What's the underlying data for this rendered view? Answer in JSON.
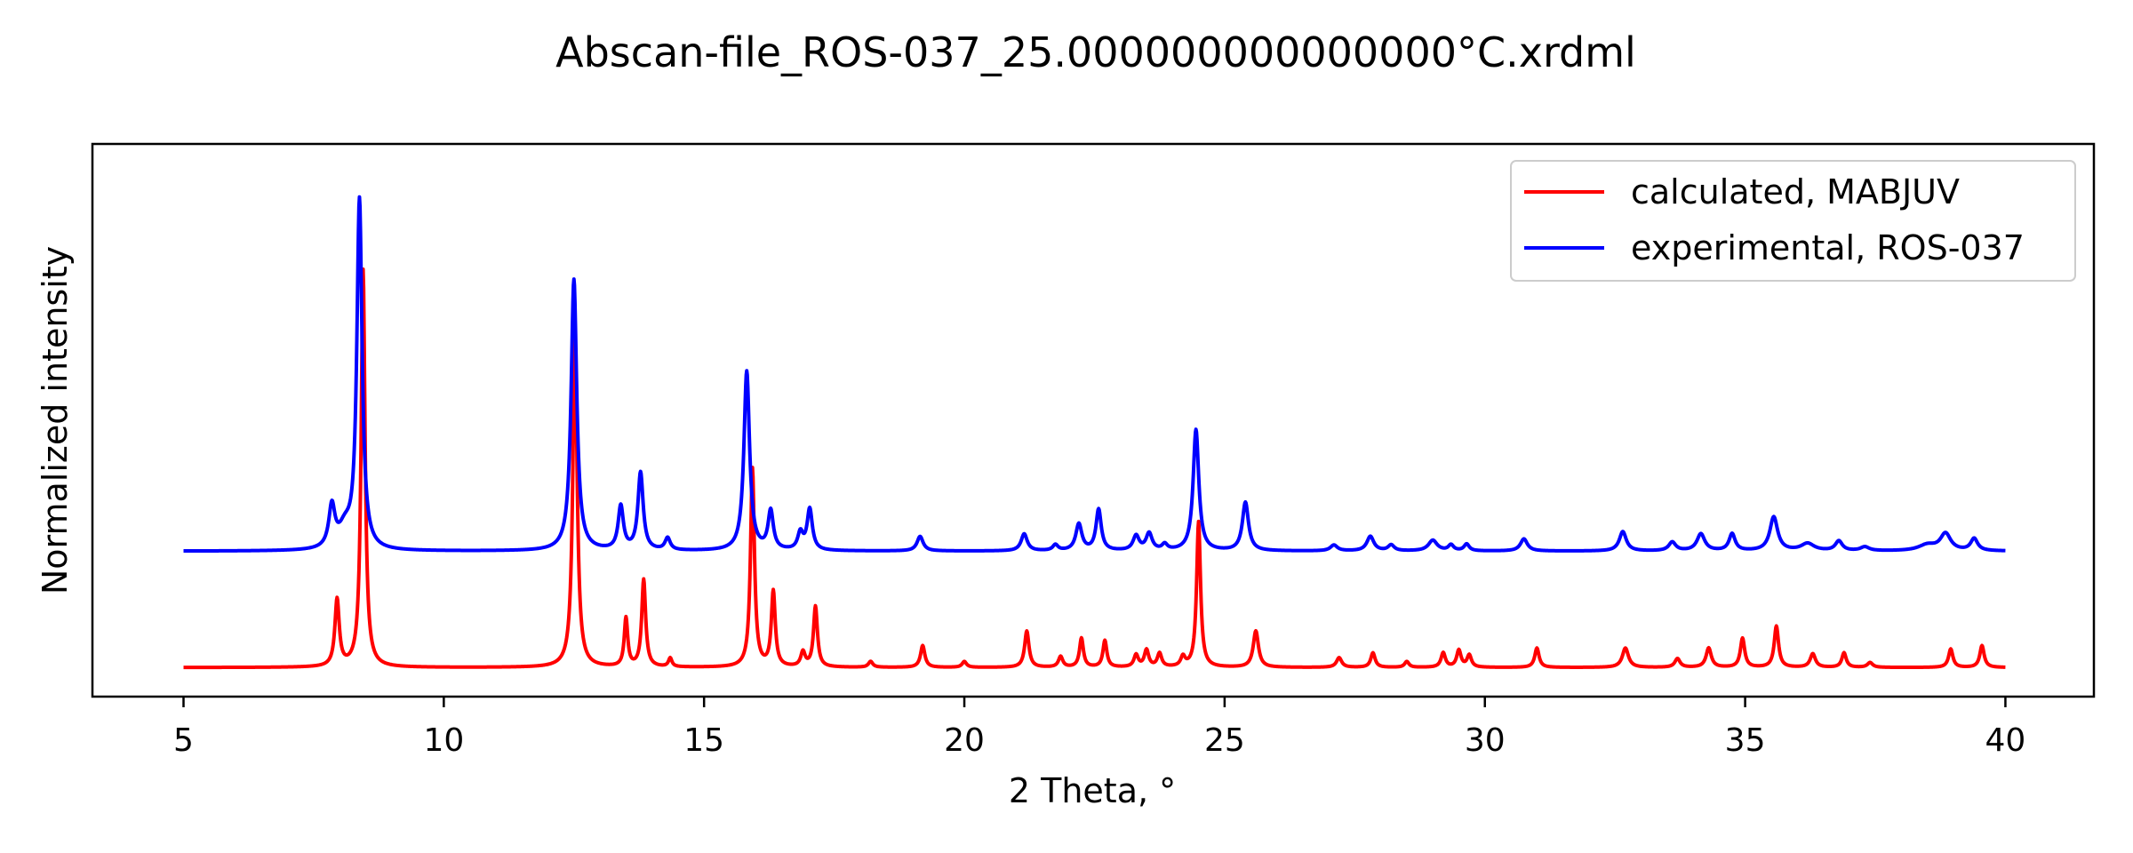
{
  "chart_data": {
    "type": "line",
    "title": "Abscan-file_ROS-037_25.000000000000000°C.xrdml",
    "xlabel": "2 Theta, °",
    "ylabel": "Normalized intensity",
    "xlim": [
      3.25,
      41.7
    ],
    "ylim": [
      -0.06,
      1.08
    ],
    "grid": false,
    "legend_position": "top-right",
    "x_ticks": [
      5,
      10,
      15,
      20,
      25,
      30,
      35,
      40
    ],
    "x_tick_labels": [
      "5",
      "10",
      "15",
      "20",
      "25",
      "30",
      "35",
      "40"
    ],
    "y_ticks_visible": false,
    "series": [
      {
        "name": "calculated, MABJUV",
        "color": "#ff0000",
        "x_range": [
          5,
          40
        ],
        "baseline": 0.0,
        "peaks": [
          {
            "x": 7.95,
            "y": 0.138,
            "w": 0.05
          },
          {
            "x": 8.45,
            "y": 0.82,
            "w": 0.045
          },
          {
            "x": 12.52,
            "y": 0.68,
            "w": 0.05
          },
          {
            "x": 13.5,
            "y": 0.1,
            "w": 0.04
          },
          {
            "x": 13.84,
            "y": 0.18,
            "w": 0.045
          },
          {
            "x": 14.35,
            "y": 0.018,
            "w": 0.04
          },
          {
            "x": 15.93,
            "y": 0.41,
            "w": 0.045
          },
          {
            "x": 16.33,
            "y": 0.155,
            "w": 0.045
          },
          {
            "x": 16.9,
            "y": 0.03,
            "w": 0.05
          },
          {
            "x": 17.14,
            "y": 0.125,
            "w": 0.045
          },
          {
            "x": 18.2,
            "y": 0.012,
            "w": 0.05
          },
          {
            "x": 19.2,
            "y": 0.045,
            "w": 0.05
          },
          {
            "x": 20.0,
            "y": 0.012,
            "w": 0.05
          },
          {
            "x": 21.2,
            "y": 0.075,
            "w": 0.05
          },
          {
            "x": 21.85,
            "y": 0.022,
            "w": 0.05
          },
          {
            "x": 22.25,
            "y": 0.06,
            "w": 0.045
          },
          {
            "x": 22.7,
            "y": 0.055,
            "w": 0.045
          },
          {
            "x": 23.3,
            "y": 0.025,
            "w": 0.05
          },
          {
            "x": 23.5,
            "y": 0.035,
            "w": 0.05
          },
          {
            "x": 23.75,
            "y": 0.028,
            "w": 0.05
          },
          {
            "x": 24.2,
            "y": 0.02,
            "w": 0.05
          },
          {
            "x": 24.5,
            "y": 0.3,
            "w": 0.045
          },
          {
            "x": 25.6,
            "y": 0.075,
            "w": 0.06
          },
          {
            "x": 27.2,
            "y": 0.02,
            "w": 0.06
          },
          {
            "x": 27.85,
            "y": 0.03,
            "w": 0.05
          },
          {
            "x": 28.5,
            "y": 0.012,
            "w": 0.05
          },
          {
            "x": 29.2,
            "y": 0.03,
            "w": 0.05
          },
          {
            "x": 29.5,
            "y": 0.035,
            "w": 0.05
          },
          {
            "x": 29.7,
            "y": 0.025,
            "w": 0.05
          },
          {
            "x": 31.0,
            "y": 0.04,
            "w": 0.05
          },
          {
            "x": 32.7,
            "y": 0.04,
            "w": 0.07
          },
          {
            "x": 33.7,
            "y": 0.018,
            "w": 0.06
          },
          {
            "x": 34.3,
            "y": 0.04,
            "w": 0.06
          },
          {
            "x": 34.95,
            "y": 0.06,
            "w": 0.05
          },
          {
            "x": 35.6,
            "y": 0.085,
            "w": 0.05
          },
          {
            "x": 36.3,
            "y": 0.028,
            "w": 0.06
          },
          {
            "x": 36.9,
            "y": 0.03,
            "w": 0.05
          },
          {
            "x": 37.4,
            "y": 0.01,
            "w": 0.06
          },
          {
            "x": 38.95,
            "y": 0.038,
            "w": 0.05
          },
          {
            "x": 39.55,
            "y": 0.045,
            "w": 0.05
          }
        ]
      },
      {
        "name": "experimental, ROS-037",
        "color": "#0000ff",
        "x_range": [
          5,
          40
        ],
        "baseline": 0.24,
        "peaks": [
          {
            "x": 7.85,
            "y": 0.085,
            "w": 0.07
          },
          {
            "x": 8.1,
            "y": 0.04,
            "w": 0.15
          },
          {
            "x": 8.38,
            "y": 0.72,
            "w": 0.06
          },
          {
            "x": 12.5,
            "y": 0.56,
            "w": 0.065
          },
          {
            "x": 13.4,
            "y": 0.09,
            "w": 0.06
          },
          {
            "x": 13.78,
            "y": 0.16,
            "w": 0.06
          },
          {
            "x": 14.3,
            "y": 0.025,
            "w": 0.06
          },
          {
            "x": 15.82,
            "y": 0.37,
            "w": 0.065
          },
          {
            "x": 16.28,
            "y": 0.08,
            "w": 0.06
          },
          {
            "x": 16.85,
            "y": 0.035,
            "w": 0.06
          },
          {
            "x": 17.03,
            "y": 0.085,
            "w": 0.06
          },
          {
            "x": 19.15,
            "y": 0.03,
            "w": 0.07
          },
          {
            "x": 21.15,
            "y": 0.035,
            "w": 0.07
          },
          {
            "x": 21.75,
            "y": 0.012,
            "w": 0.06
          },
          {
            "x": 22.2,
            "y": 0.055,
            "w": 0.07
          },
          {
            "x": 22.58,
            "y": 0.085,
            "w": 0.06
          },
          {
            "x": 23.3,
            "y": 0.03,
            "w": 0.07
          },
          {
            "x": 23.55,
            "y": 0.035,
            "w": 0.07
          },
          {
            "x": 23.85,
            "y": 0.012,
            "w": 0.06
          },
          {
            "x": 24.45,
            "y": 0.25,
            "w": 0.065
          },
          {
            "x": 25.4,
            "y": 0.1,
            "w": 0.07
          },
          {
            "x": 27.1,
            "y": 0.012,
            "w": 0.08
          },
          {
            "x": 27.8,
            "y": 0.03,
            "w": 0.08
          },
          {
            "x": 28.2,
            "y": 0.012,
            "w": 0.07
          },
          {
            "x": 29.0,
            "y": 0.022,
            "w": 0.1
          },
          {
            "x": 29.35,
            "y": 0.012,
            "w": 0.06
          },
          {
            "x": 29.65,
            "y": 0.014,
            "w": 0.06
          },
          {
            "x": 30.75,
            "y": 0.025,
            "w": 0.08
          },
          {
            "x": 32.65,
            "y": 0.04,
            "w": 0.08
          },
          {
            "x": 33.6,
            "y": 0.018,
            "w": 0.08
          },
          {
            "x": 34.15,
            "y": 0.035,
            "w": 0.09
          },
          {
            "x": 34.75,
            "y": 0.035,
            "w": 0.07
          },
          {
            "x": 35.55,
            "y": 0.07,
            "w": 0.09
          },
          {
            "x": 36.2,
            "y": 0.015,
            "w": 0.15
          },
          {
            "x": 36.8,
            "y": 0.02,
            "w": 0.08
          },
          {
            "x": 37.3,
            "y": 0.008,
            "w": 0.1
          },
          {
            "x": 38.5,
            "y": 0.012,
            "w": 0.2
          },
          {
            "x": 38.85,
            "y": 0.035,
            "w": 0.12
          },
          {
            "x": 39.4,
            "y": 0.025,
            "w": 0.08
          }
        ]
      }
    ]
  }
}
